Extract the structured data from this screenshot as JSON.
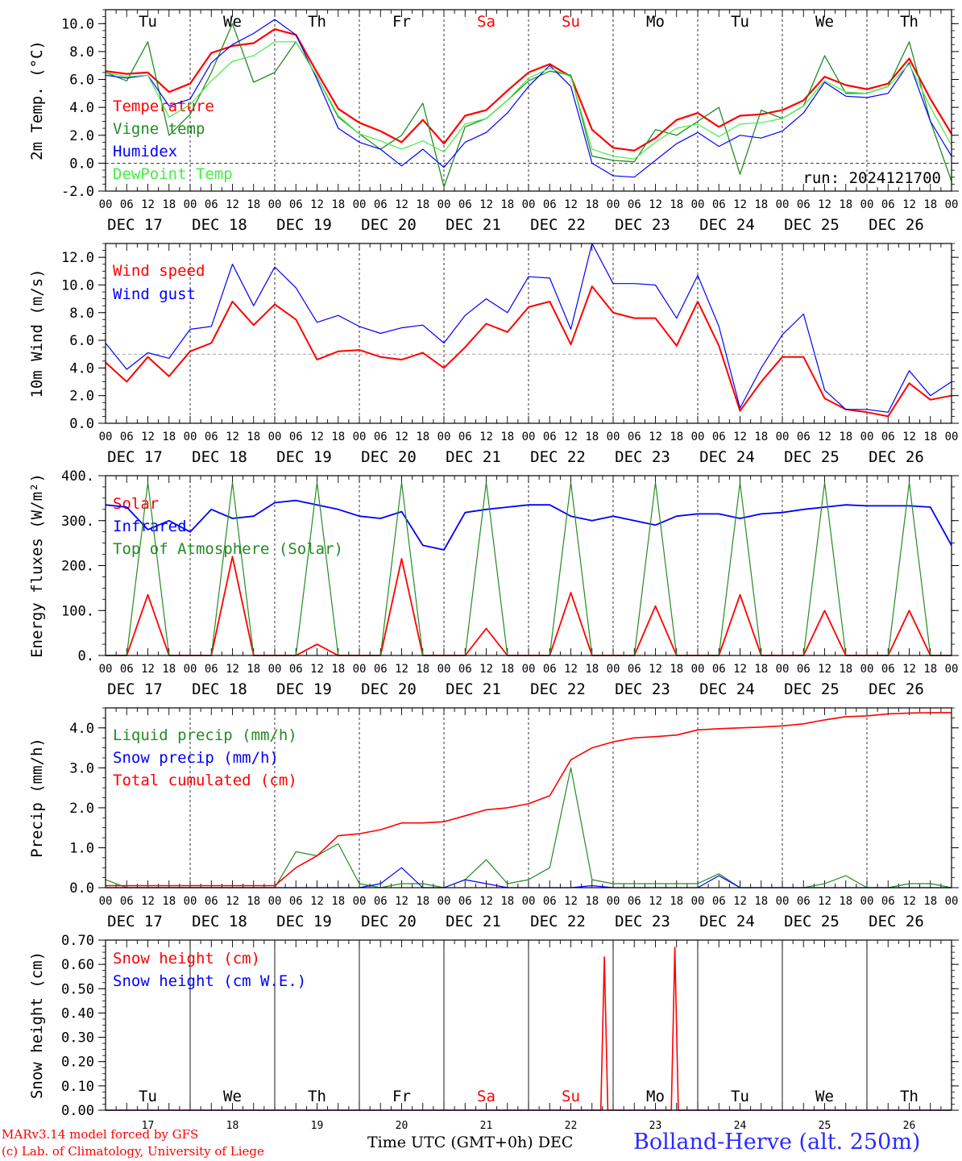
{
  "time_axis": {
    "hour_labels": [
      "00",
      "06",
      "12",
      "18",
      "00",
      "06",
      "12",
      "18",
      "00",
      "06",
      "12",
      "18",
      "00",
      "06",
      "12",
      "18",
      "00",
      "06",
      "12",
      "18",
      "00",
      "06",
      "12",
      "18",
      "00",
      "06",
      "12",
      "18",
      "00",
      "06",
      "12",
      "18",
      "00",
      "06",
      "12",
      "18",
      "00",
      "06",
      "12",
      "18",
      "00"
    ],
    "date_labels": [
      "DEC 17",
      "DEC 18",
      "DEC 19",
      "DEC 20",
      "DEC 21",
      "DEC 22",
      "DEC 23",
      "DEC 24",
      "DEC 25",
      "DEC 26"
    ],
    "weekdays": [
      "Tu",
      "We",
      "Th",
      "Fr",
      "Sa",
      "Su",
      "Mo",
      "Tu",
      "We",
      "Th"
    ],
    "weekend_color": "#ff0000",
    "day_numbers": [
      "17",
      "18",
      "19",
      "20",
      "21",
      "22",
      "23",
      "24",
      "25",
      "26"
    ],
    "month_label": "DEC",
    "title": "Time UTC (GMT+0h)"
  },
  "footer": {
    "credit_line1": "MARv3.14 model forced by GFS",
    "credit_line2": "(c) Lab. of Climatology, University of Liege",
    "station": "Bolland-Herve (alt. 250m)"
  },
  "chart_data": [
    {
      "type": "line",
      "ylabel": "2m Temp. (°C)",
      "ylim": [
        -2,
        11
      ],
      "yticks": [
        -2,
        0,
        2,
        4,
        6,
        8,
        10
      ],
      "ytick_labels": [
        "-2.0",
        "0.0",
        "2.0",
        "4.0",
        "6.0",
        "8.0",
        "10.0"
      ],
      "reference_line": 0,
      "annotation": "run: 2024121700",
      "x_hours": [
        0,
        6,
        12,
        18,
        24,
        30,
        36,
        42,
        48,
        54,
        60,
        66,
        72,
        78,
        84,
        90,
        96,
        102,
        108,
        114,
        120,
        126,
        132,
        138,
        144,
        150,
        156,
        162,
        168,
        174,
        180,
        186,
        192,
        198,
        204,
        210,
        216,
        222,
        228,
        234,
        240
      ],
      "series": [
        {
          "name": "Temperature",
          "color": "#ff0000",
          "width": 2.2,
          "values": [
            6.6,
            6.4,
            6.5,
            5.1,
            5.7,
            7.9,
            8.4,
            8.6,
            9.6,
            9.2,
            6.5,
            3.9,
            2.9,
            2.3,
            1.5,
            3.1,
            1.4,
            3.4,
            3.8,
            5.2,
            6.5,
            7.1,
            6.2,
            2.4,
            1.1,
            0.9,
            1.8,
            3.1,
            3.6,
            2.6,
            3.4,
            3.5,
            3.8,
            4.5,
            6.2,
            5.6,
            5.3,
            5.7,
            7.5,
            4.6,
            2.1
          ]
        },
        {
          "name": "Vigne temp",
          "color": "#228b22",
          "width": 1.3,
          "values": [
            6.5,
            5.9,
            8.7,
            2.0,
            3.5,
            6.5,
            10.0,
            5.8,
            6.5,
            8.7,
            6.2,
            3.3,
            2.1,
            1.0,
            2.0,
            4.3,
            -1.7,
            2.6,
            3.2,
            4.5,
            5.9,
            6.6,
            6.3,
            0.5,
            0.2,
            0.1,
            2.4,
            2.0,
            3.0,
            4.0,
            -0.8,
            3.8,
            3.2,
            4.1,
            7.7,
            5.0,
            5.0,
            5.5,
            8.7,
            3.0,
            -1.3
          ]
        },
        {
          "name": "Humidex",
          "color": "#0000ff",
          "width": 1.2,
          "values": [
            6.3,
            6.1,
            6.3,
            4.1,
            4.6,
            7.2,
            8.5,
            9.3,
            10.3,
            9.2,
            6.0,
            2.5,
            1.5,
            1.0,
            -0.2,
            1.0,
            -0.3,
            1.5,
            2.2,
            3.6,
            5.5,
            7.0,
            5.5,
            0.0,
            -0.9,
            -1.0,
            0.2,
            1.4,
            2.2,
            1.2,
            2.0,
            1.8,
            2.3,
            3.6,
            5.8,
            4.8,
            4.7,
            5.0,
            7.2,
            3.0,
            0.5
          ]
        },
        {
          "name": "DewPoint Temp",
          "color": "#44ee44",
          "width": 1.2,
          "values": [
            6.5,
            6.2,
            6.3,
            3.3,
            4.2,
            5.9,
            7.3,
            7.7,
            8.7,
            8.7,
            6.2,
            3.4,
            2.1,
            1.6,
            1.0,
            1.6,
            0.8,
            2.8,
            3.2,
            4.5,
            6.1,
            6.8,
            6.2,
            1.0,
            0.5,
            0.3,
            1.5,
            2.5,
            2.8,
            1.9,
            2.8,
            2.9,
            3.2,
            4.1,
            5.9,
            5.1,
            5.0,
            5.5,
            7.1,
            4.0,
            1.3
          ]
        }
      ]
    },
    {
      "type": "line",
      "ylabel": "10m Wind (m/s)",
      "ylim": [
        0,
        13
      ],
      "yticks": [
        0,
        2,
        4,
        6,
        8,
        10,
        12
      ],
      "ytick_labels": [
        "0.0",
        "2.0",
        "4.0",
        "6.0",
        "8.0",
        "10.0",
        "12.0"
      ],
      "reference_line": 5,
      "x_hours": [
        0,
        6,
        12,
        18,
        24,
        30,
        36,
        42,
        48,
        54,
        60,
        66,
        72,
        78,
        84,
        90,
        96,
        102,
        108,
        114,
        120,
        126,
        132,
        138,
        144,
        150,
        156,
        162,
        168,
        174,
        180,
        186,
        192,
        198,
        204,
        210,
        216,
        222,
        228,
        234,
        240
      ],
      "series": [
        {
          "name": "Wind speed",
          "color": "#ff0000",
          "width": 2.0,
          "values": [
            4.4,
            3.0,
            4.8,
            3.4,
            5.2,
            5.8,
            8.8,
            7.1,
            8.6,
            7.5,
            4.6,
            5.2,
            5.3,
            4.8,
            4.6,
            5.1,
            4.0,
            5.5,
            7.2,
            6.6,
            8.4,
            8.8,
            5.7,
            9.9,
            8.0,
            7.6,
            7.6,
            5.6,
            8.8,
            5.6,
            0.9,
            3.0,
            4.8,
            4.8,
            1.8,
            1.0,
            0.8,
            0.5,
            2.9,
            1.7,
            2.0
          ]
        },
        {
          "name": "Wind gust",
          "color": "#0000ff",
          "width": 1.2,
          "values": [
            5.8,
            3.9,
            5.1,
            4.7,
            6.8,
            7.0,
            11.5,
            8.5,
            11.3,
            9.8,
            7.3,
            7.8,
            7.0,
            6.5,
            6.9,
            7.1,
            5.8,
            7.8,
            9.0,
            8.0,
            10.6,
            10.5,
            6.8,
            13.0,
            10.1,
            10.1,
            10.0,
            7.6,
            10.7,
            7.0,
            1.1,
            4.0,
            6.4,
            7.9,
            2.4,
            1.0,
            1.0,
            0.8,
            3.8,
            2.0,
            3.0
          ]
        }
      ]
    },
    {
      "type": "line",
      "ylabel": "Energy fluxes (W/m²)",
      "ylim": [
        0,
        400
      ],
      "yticks": [
        0,
        100,
        200,
        300,
        400
      ],
      "ytick_labels": [
        "0.",
        "100.",
        "200.",
        "300.",
        "400."
      ],
      "x_hours": [
        0,
        6,
        12,
        18,
        24,
        30,
        36,
        42,
        48,
        54,
        60,
        66,
        72,
        78,
        84,
        90,
        96,
        102,
        108,
        114,
        120,
        126,
        132,
        138,
        144,
        150,
        156,
        162,
        168,
        174,
        180,
        186,
        192,
        198,
        204,
        210,
        216,
        222,
        228,
        234,
        240
      ],
      "series": [
        {
          "name": "Solar",
          "color": "#ff0000",
          "width": 1.8,
          "values": [
            0,
            0,
            135,
            0,
            0,
            0,
            220,
            0,
            0,
            0,
            25,
            0,
            0,
            0,
            215,
            0,
            0,
            0,
            60,
            0,
            0,
            0,
            140,
            0,
            0,
            0,
            110,
            0,
            0,
            0,
            135,
            0,
            0,
            0,
            100,
            0,
            0,
            0,
            100,
            0,
            0
          ]
        },
        {
          "name": "Infrared",
          "color": "#0000ff",
          "width": 1.8,
          "values": [
            335,
            330,
            280,
            300,
            275,
            325,
            305,
            310,
            340,
            345,
            335,
            325,
            310,
            305,
            320,
            245,
            235,
            318,
            325,
            330,
            335,
            335,
            310,
            300,
            310,
            300,
            290,
            310,
            315,
            315,
            305,
            315,
            318,
            325,
            330,
            335,
            333,
            333,
            333,
            330,
            245
          ]
        },
        {
          "name": "Top of Atmosphere (Solar)",
          "color": "#228b22",
          "width": 1.2,
          "values": [
            0,
            0,
            385,
            0,
            0,
            0,
            385,
            0,
            0,
            0,
            385,
            0,
            0,
            0,
            385,
            0,
            0,
            0,
            385,
            0,
            0,
            0,
            385,
            0,
            0,
            0,
            385,
            0,
            0,
            0,
            385,
            0,
            0,
            0,
            385,
            0,
            0,
            0,
            385,
            0,
            0
          ]
        }
      ]
    },
    {
      "type": "line",
      "ylabel": "Precip (mm/h)",
      "ylim": [
        0,
        4.5
      ],
      "yticks": [
        0,
        1,
        2,
        3,
        4
      ],
      "ytick_labels": [
        "0.0",
        "1.0",
        "2.0",
        "3.0",
        "4.0"
      ],
      "x_hours": [
        0,
        6,
        12,
        18,
        24,
        30,
        36,
        42,
        48,
        54,
        60,
        66,
        72,
        78,
        84,
        90,
        96,
        102,
        108,
        114,
        120,
        126,
        132,
        138,
        144,
        150,
        156,
        162,
        168,
        174,
        180,
        186,
        192,
        198,
        204,
        210,
        216,
        222,
        228,
        234,
        240
      ],
      "series": [
        {
          "name": "Liquid precip (mm/h)",
          "color": "#228b22",
          "width": 1.2,
          "values": [
            0.2,
            0,
            0,
            0,
            0,
            0,
            0,
            0,
            0,
            0.9,
            0.8,
            1.1,
            0.1,
            0,
            0.1,
            0.1,
            0,
            0.2,
            0.7,
            0.1,
            0.2,
            0.5,
            3.0,
            0.2,
            0.1,
            0.1,
            0.1,
            0.1,
            0.1,
            0.35,
            0,
            0,
            0,
            0,
            0.1,
            0.3,
            0,
            0,
            0.1,
            0.1,
            0
          ]
        },
        {
          "name": "Snow precip (mm/h)",
          "color": "#0000ff",
          "width": 1.2,
          "values": [
            0,
            0,
            0,
            0,
            0,
            0,
            0,
            0,
            0,
            0,
            0,
            0,
            0,
            0.1,
            0.5,
            0,
            0,
            0.2,
            0.1,
            0,
            0,
            0,
            0,
            0.05,
            0,
            0,
            0,
            0,
            0,
            0.3,
            0,
            0,
            0,
            0,
            0,
            0,
            0,
            0,
            0,
            0,
            0
          ]
        },
        {
          "name": "Total cumulated (cm)",
          "color": "#ff0000",
          "width": 1.6,
          "values": [
            0.05,
            0.05,
            0.05,
            0.05,
            0.05,
            0.05,
            0.05,
            0.05,
            0.05,
            0.5,
            0.8,
            1.3,
            1.35,
            1.45,
            1.62,
            1.62,
            1.65,
            1.8,
            1.95,
            2.0,
            2.1,
            2.3,
            3.2,
            3.5,
            3.65,
            3.75,
            3.78,
            3.82,
            3.95,
            3.98,
            4.0,
            4.02,
            4.05,
            4.1,
            4.2,
            4.28,
            4.3,
            4.35,
            4.37,
            4.38,
            4.38
          ]
        }
      ]
    },
    {
      "type": "line",
      "ylabel": "Snow height (cm)",
      "ylim": [
        0,
        0.7
      ],
      "yticks": [
        0,
        0.1,
        0.2,
        0.3,
        0.4,
        0.5,
        0.6,
        0.7
      ],
      "ytick_labels": [
        "0.00",
        "0.10",
        "0.20",
        "0.30",
        "0.40",
        "0.50",
        "0.60",
        "0.70"
      ],
      "series": [
        {
          "name": "Snow height (cm)",
          "color": "#ff0000",
          "width": 1.6,
          "points": [
            [
              0,
              0
            ],
            [
              140.5,
              0
            ],
            [
              141.5,
              0.63
            ],
            [
              142.5,
              0
            ],
            [
              160.5,
              0
            ],
            [
              161.5,
              0.67
            ],
            [
              162.5,
              0
            ],
            [
              240,
              0
            ]
          ]
        },
        {
          "name": "Snow height (cm W.E.)",
          "color": "#0000ff",
          "width": 1.2,
          "points": [
            [
              0,
              0
            ],
            [
              240,
              0
            ]
          ]
        }
      ]
    }
  ]
}
